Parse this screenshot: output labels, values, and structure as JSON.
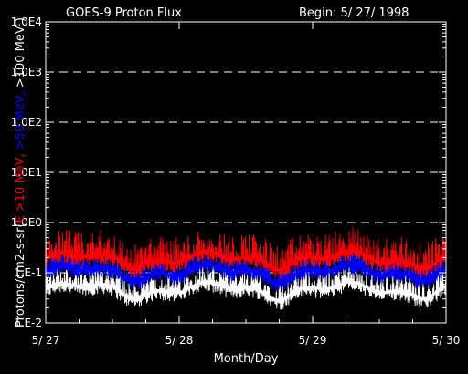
{
  "chart_data": {
    "type": "line",
    "title": "GOES-9 Proton Flux",
    "subtitle": "Begin: 5/ 27/ 1998",
    "xlabel": "Month/Day",
    "ylabel_parts": [
      {
        "text": "Protons/cm2-s-sr(",
        "color": "#ffffff"
      },
      {
        "text": "E >10 MeV, ",
        "color": "#ff0000"
      },
      {
        "text": ">50 MeV, ",
        "color": "#0000ff"
      },
      {
        "text": ">100 MeV )",
        "color": "#ffffff"
      }
    ],
    "x_ticks": [
      "5/ 27",
      "5/ 28",
      "5/ 29",
      "5/ 30"
    ],
    "xlim_days": [
      0,
      3
    ],
    "y_scale": "log",
    "ylim": [
      0.01,
      10000
    ],
    "y_ticks": [
      {
        "value": 10000,
        "label": "1.0E4"
      },
      {
        "value": 1000,
        "label": "1.0E3"
      },
      {
        "value": 100,
        "label": "1.0E2"
      },
      {
        "value": 10,
        "label": "1.0E1"
      },
      {
        "value": 1,
        "label": "1.0E0"
      },
      {
        "value": 0.1,
        "label": "1.E-1"
      },
      {
        "value": 0.01,
        "label": "1.E-2"
      }
    ],
    "grid": "dashed horizontal at each decade",
    "series": [
      {
        "name": ">10 MeV",
        "color": "#ff0000",
        "base": 0.2,
        "spike": 0.6
      },
      {
        "name": ">50 MeV",
        "color": "#0000ff",
        "base": 0.11,
        "spike": 0.25
      },
      {
        "name": ">100 MeV",
        "color": "#ffffff",
        "base": 0.05,
        "spike": 0.12
      }
    ]
  }
}
